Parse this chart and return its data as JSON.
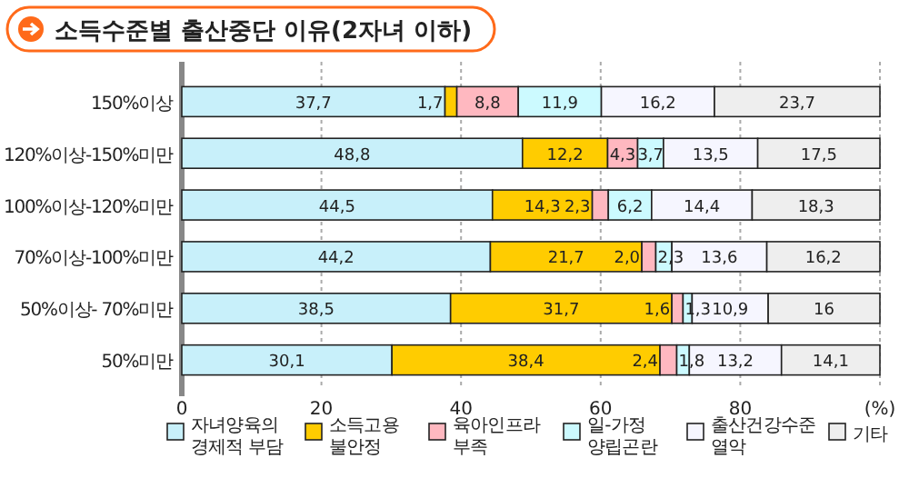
{
  "chart_data": {
    "type": "bar",
    "orientation": "horizontal",
    "stacked": true,
    "title": "소득수준별 출산중단 이유(2자녀 이하)",
    "categories": [
      "150%이상",
      "120%이상-150%미만",
      "100%이상-120%미만",
      "70%이상-100%미만",
      "50%이상- 70%미만",
      "50%미만"
    ],
    "series": [
      {
        "name": "자녀양육의 경제적 부담",
        "color": "#c8f0fa",
        "values": [
          37.7,
          48.8,
          44.5,
          44.2,
          38.5,
          30.1
        ],
        "value_labels": [
          "37,7",
          "48,8",
          "44,5",
          "44,2",
          "38,5",
          "30,1"
        ]
      },
      {
        "name": "소득고용 불안정",
        "color": "#ffcc00",
        "values": [
          1.7,
          12.2,
          14.3,
          21.7,
          31.7,
          38.4
        ],
        "value_labels": [
          "1,7",
          "12,2",
          "14,3",
          "21,7",
          "31,7",
          "38,4"
        ]
      },
      {
        "name": "육아인프라 부족",
        "color": "#ffb8c0",
        "values": [
          8.8,
          4.3,
          2.3,
          2.0,
          1.6,
          2.4
        ],
        "value_labels": [
          "8,8",
          "4,3",
          "2,3",
          "2,0",
          "1,6",
          "2,4"
        ]
      },
      {
        "name": "일-가정 양립곤란",
        "color": "#ccfaff",
        "values": [
          11.9,
          3.7,
          6.2,
          2.3,
          1.3,
          1.8
        ],
        "value_labels": [
          "11,9",
          "3,7",
          "6,2",
          "2,3",
          "1,3",
          "1,8"
        ]
      },
      {
        "name": "출산건강수준 열악",
        "color": "#f6f6ff",
        "values": [
          16.2,
          13.5,
          14.4,
          13.6,
          10.9,
          13.2
        ],
        "value_labels": [
          "16,2",
          "13,5",
          "14,4",
          "13,6",
          "10,9",
          "13,2"
        ]
      },
      {
        "name": "기타",
        "color": "#eeeeee",
        "values": [
          23.7,
          17.5,
          18.3,
          16.2,
          16,
          14.1
        ],
        "value_labels": [
          "23,7",
          "17,5",
          "18,3",
          "16,2",
          "16",
          "14,1"
        ]
      }
    ],
    "xlim": [
      0,
      100
    ],
    "xticks": [
      0,
      20,
      40,
      60,
      80,
      {
        "value": 100,
        "label": "(%)"
      }
    ],
    "grid": "x",
    "legend": "bottom"
  }
}
